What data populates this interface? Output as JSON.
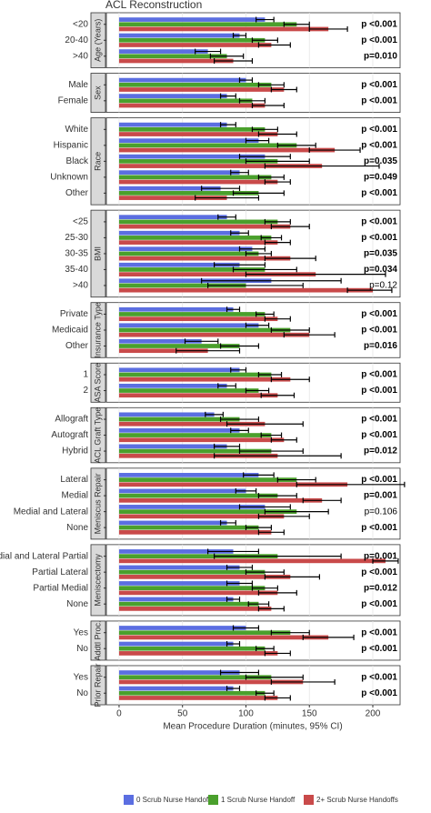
{
  "chart_data": {
    "type": "bar",
    "title": "ACL Reconstruction",
    "x_label": "Mean Procedure Duration (minutes, 95% CI)",
    "xlim": [
      -10,
      221.5
    ],
    "xticks": [
      0,
      50,
      100,
      150,
      200
    ],
    "grid": true,
    "series": [
      {
        "name": "0 Scrub Nurse Handoffs",
        "color": "#5b6ee1"
      },
      {
        "name": "1 Scrub Nurse Handoff",
        "color": "#4aa02c"
      },
      {
        "name": "2+ Scrub Nurse Handoffs",
        "color": "#c94a4a"
      }
    ],
    "panels": [
      {
        "name": "Age (Years)",
        "categories": [
          "<20",
          "20-40",
          ">40"
        ],
        "values": [
          [
            115,
            140,
            165
          ],
          [
            95,
            115,
            120
          ],
          [
            70,
            85,
            90
          ]
        ],
        "ci": [
          [
            [
              108,
              122
            ],
            [
              130,
              150
            ],
            [
              150,
              180
            ]
          ],
          [
            [
              90,
              100
            ],
            [
              105,
              125
            ],
            [
              110,
              135
            ]
          ],
          [
            [
              60,
              80
            ],
            [
              72,
              98
            ],
            [
              75,
              105
            ]
          ]
        ],
        "p_values": [
          "p <0.001",
          "p <0.001",
          "p=0.010"
        ],
        "p_bold": [
          true,
          true,
          true
        ]
      },
      {
        "name": "Sex",
        "categories": [
          "Male",
          "Female"
        ],
        "values": [
          [
            100,
            120,
            130
          ],
          [
            85,
            105,
            115
          ]
        ],
        "ci": [
          [
            [
              95,
              105
            ],
            [
              110,
              130
            ],
            [
              120,
              140
            ]
          ],
          [
            [
              80,
              92
            ],
            [
              95,
              115
            ],
            [
              105,
              130
            ]
          ]
        ],
        "p_values": [
          "p <0.001",
          "p <0.001"
        ],
        "p_bold": [
          true,
          true
        ]
      },
      {
        "name": "Race",
        "categories": [
          "White",
          "Hispanic",
          "Black",
          "Unknown",
          "Other"
        ],
        "values": [
          [
            85,
            115,
            125
          ],
          [
            110,
            140,
            170
          ],
          [
            115,
            125,
            160
          ],
          [
            95,
            120,
            125
          ],
          [
            80,
            110,
            85
          ]
        ],
        "ci": [
          [
            [
              80,
              92
            ],
            [
              105,
              125
            ],
            [
              110,
              140
            ]
          ],
          [
            [
              100,
              118
            ],
            [
              125,
              155
            ],
            [
              150,
              190
            ]
          ],
          [
            [
              95,
              135
            ],
            [
              100,
              150
            ],
            [
              115,
              205
            ]
          ],
          [
            [
              88,
              102
            ],
            [
              110,
              130
            ],
            [
              115,
              135
            ]
          ],
          [
            [
              65,
              95
            ],
            [
              90,
              130
            ],
            [
              60,
              110
            ]
          ]
        ],
        "p_values": [
          "p <0.001",
          "p <0.001",
          "p=0.035",
          "p=0.049",
          "p <0.001"
        ],
        "p_bold": [
          true,
          true,
          true,
          true,
          true
        ]
      },
      {
        "name": "BMI",
        "categories": [
          "<25",
          "25-30",
          "30-35",
          "35-40",
          ">40"
        ],
        "values": [
          [
            85,
            125,
            135
          ],
          [
            95,
            120,
            125
          ],
          [
            105,
            110,
            135
          ],
          [
            95,
            115,
            155
          ],
          [
            120,
            100,
            200
          ]
        ],
        "ci": [
          [
            [
              78,
              92
            ],
            [
              115,
              135
            ],
            [
              120,
              150
            ]
          ],
          [
            [
              88,
              102
            ],
            [
              112,
              128
            ],
            [
              115,
              135
            ]
          ],
          [
            [
              95,
              115
            ],
            [
              100,
              120
            ],
            [
              115,
              155
            ]
          ],
          [
            [
              75,
              115
            ],
            [
              90,
              140
            ],
            [
              100,
              210
            ]
          ],
          [
            [
              65,
              175
            ],
            [
              70,
              145
            ],
            [
              180,
              215
            ]
          ]
        ],
        "p_values": [
          "p <0.001",
          "p <0.001",
          "p=0.035",
          "p=0.034",
          "p=0.12"
        ],
        "p_bold": [
          true,
          true,
          true,
          true,
          false
        ]
      },
      {
        "name": "Insurance Type",
        "categories": [
          "Private",
          "Medicaid",
          "Other"
        ],
        "values": [
          [
            90,
            115,
            125
          ],
          [
            110,
            135,
            150
          ],
          [
            65,
            95,
            70
          ]
        ],
        "ci": [
          [
            [
              85,
              95
            ],
            [
              108,
              122
            ],
            [
              115,
              135
            ]
          ],
          [
            [
              100,
              118
            ],
            [
              120,
              150
            ],
            [
              130,
              170
            ]
          ],
          [
            [
              52,
              78
            ],
            [
              80,
              110
            ],
            [
              45,
              95
            ]
          ]
        ],
        "p_values": [
          "p <0.001",
          "p <0.001",
          "p=0.016"
        ],
        "p_bold": [
          true,
          true,
          true
        ]
      },
      {
        "name": "ASA Score",
        "categories": [
          "1",
          "2"
        ],
        "values": [
          [
            95,
            120,
            135
          ],
          [
            85,
            110,
            125
          ]
        ],
        "ci": [
          [
            [
              88,
              100
            ],
            [
              110,
              128
            ],
            [
              120,
              150
            ]
          ],
          [
            [
              78,
              92
            ],
            [
              100,
              118
            ],
            [
              112,
              138
            ]
          ]
        ],
        "p_values": [
          "p <0.001",
          "p <0.001"
        ],
        "p_bold": [
          true,
          true
        ]
      },
      {
        "name": "ACL Graft Type",
        "categories": [
          "Allograft",
          "Autograft",
          "Hybrid"
        ],
        "values": [
          [
            75,
            95,
            115
          ],
          [
            95,
            120,
            130
          ],
          [
            85,
            120,
            125
          ]
        ],
        "ci": [
          [
            [
              68,
              82
            ],
            [
              80,
              110
            ],
            [
              85,
              145
            ]
          ],
          [
            [
              88,
              102
            ],
            [
              112,
              128
            ],
            [
              120,
              140
            ]
          ],
          [
            [
              75,
              95
            ],
            [
              95,
              145
            ],
            [
              75,
              175
            ]
          ]
        ],
        "p_values": [
          "p <0.001",
          "p <0.001",
          "p=0.012"
        ],
        "p_bold": [
          true,
          true,
          true
        ]
      },
      {
        "name": "Meniscus Repair",
        "categories": [
          "Lateral",
          "Medial",
          "Medial and Lateral",
          "None"
        ],
        "values": [
          [
            110,
            140,
            180
          ],
          [
            100,
            125,
            160
          ],
          [
            115,
            140,
            130
          ],
          [
            85,
            110,
            120
          ]
        ],
        "ci": [
          [
            [
              98,
              122
            ],
            [
              125,
              155
            ],
            [
              140,
              225
            ]
          ],
          [
            [
              92,
              108
            ],
            [
              110,
              140
            ],
            [
              145,
              175
            ]
          ],
          [
            [
              95,
              135
            ],
            [
              115,
              165
            ],
            [
              110,
              150
            ]
          ],
          [
            [
              80,
              92
            ],
            [
              100,
              120
            ],
            [
              110,
              130
            ]
          ]
        ],
        "p_values": [
          "p <0.001",
          "p=0.001",
          "p=0.106",
          "p <0.001"
        ],
        "p_bold": [
          true,
          true,
          false,
          true
        ]
      },
      {
        "name": "Meniscectomy",
        "categories": [
          "Medial and Lateral Partial",
          "Partial Lateral",
          "Partial Medial",
          "None"
        ],
        "values": [
          [
            90,
            125,
            210
          ],
          [
            95,
            115,
            135
          ],
          [
            95,
            115,
            125
          ],
          [
            90,
            110,
            120
          ]
        ],
        "ci": [
          [
            [
              70,
              110
            ],
            [
              75,
              175
            ],
            [
              200,
              220
            ]
          ],
          [
            [
              85,
              105
            ],
            [
              100,
              130
            ],
            [
              115,
              158
            ]
          ],
          [
            [
              85,
              105
            ],
            [
              105,
              125
            ],
            [
              110,
              140
            ]
          ],
          [
            [
              85,
              95
            ],
            [
              102,
              118
            ],
            [
              110,
              130
            ]
          ]
        ],
        "p_values": [
          "p=0.001",
          "p <0.001",
          "p=0.012",
          "p <0.001"
        ],
        "p_bold": [
          true,
          true,
          true,
          true
        ]
      },
      {
        "name": "Addtl Proc.",
        "categories": [
          "Yes",
          "No"
        ],
        "values": [
          [
            100,
            135,
            165
          ],
          [
            90,
            115,
            125
          ]
        ],
        "ci": [
          [
            [
              90,
              110
            ],
            [
              120,
              150
            ],
            [
              145,
              185
            ]
          ],
          [
            [
              85,
              95
            ],
            [
              108,
              122
            ],
            [
              115,
              135
            ]
          ]
        ],
        "p_values": [
          "p <0.001",
          "p <0.001"
        ],
        "p_bold": [
          true,
          true
        ]
      },
      {
        "name": "Prior Repair",
        "categories": [
          "Yes",
          "No"
        ],
        "values": [
          [
            95,
            120,
            145
          ],
          [
            90,
            115,
            125
          ]
        ],
        "ci": [
          [
            [
              80,
              110
            ],
            [
              100,
              145
            ],
            [
              120,
              170
            ]
          ],
          [
            [
              85,
              95
            ],
            [
              108,
              122
            ],
            [
              115,
              135
            ]
          ]
        ],
        "p_values": [
          "p <0.001",
          "p <0.001"
        ],
        "p_bold": [
          true,
          true
        ]
      }
    ]
  }
}
